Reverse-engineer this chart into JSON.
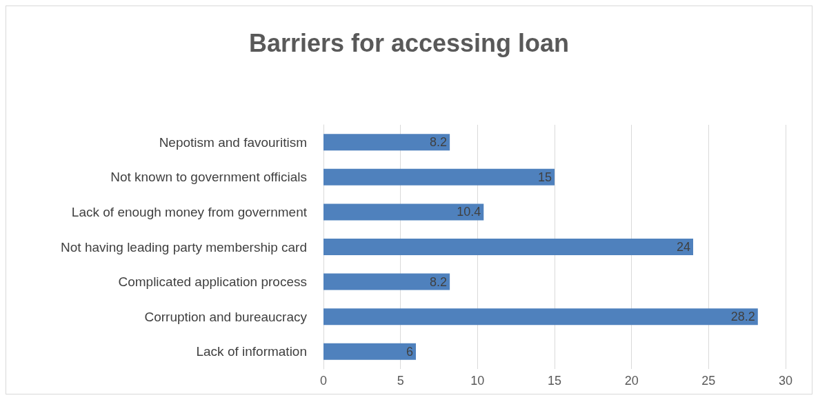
{
  "chart_data": {
    "type": "bar",
    "orientation": "horizontal",
    "title": "Barriers for accessing loan",
    "categories": [
      "Nepotism and favouritism",
      "Not known to government officials",
      "Lack of enough money from government",
      "Not having leading party membership card",
      "Complicated application process",
      "Corruption and bureaucracy",
      "Lack of information"
    ],
    "values": [
      8.2,
      15,
      10.4,
      24,
      8.2,
      28.2,
      6
    ],
    "color": "#4f81bd",
    "xlim": [
      0,
      30
    ],
    "xticks": [
      0,
      5,
      10,
      15,
      20,
      25,
      30
    ],
    "grid": "x",
    "data_labels": true
  }
}
